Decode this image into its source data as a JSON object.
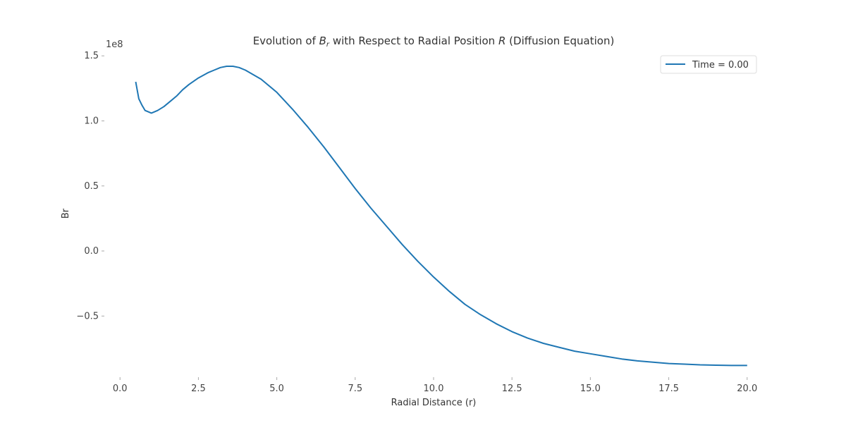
{
  "chart_data": {
    "type": "line",
    "title": "Evolution of B_r with Respect to Radial Position R (Diffusion Equation)",
    "xlabel": "Radial Distance (r)",
    "ylabel": "Br",
    "y_offset_label": "1e8",
    "xlim": [
      -0.5,
      20.5
    ],
    "ylim": [
      -0.97,
      1.55
    ],
    "x_ticks": [
      0.0,
      2.5,
      5.0,
      7.5,
      10.0,
      12.5,
      15.0,
      17.5,
      20.0
    ],
    "x_tick_labels": [
      "0.0",
      "2.5",
      "5.0",
      "7.5",
      "10.0",
      "12.5",
      "15.0",
      "17.5",
      "20.0"
    ],
    "y_ticks": [
      -0.5,
      0.0,
      0.5,
      1.0,
      1.5
    ],
    "y_tick_labels": [
      "−0.5",
      "0.0",
      "0.5",
      "1.0",
      "1.5"
    ],
    "grid": false,
    "legend_position": "top-right",
    "series": [
      {
        "name": "Time = 0.00",
        "color": "#1f77b4",
        "x": [
          0.5,
          0.6,
          0.7,
          0.8,
          0.9,
          1.0,
          1.1,
          1.2,
          1.4,
          1.6,
          1.8,
          2.0,
          2.2,
          2.5,
          2.8,
          3.0,
          3.2,
          3.4,
          3.6,
          3.8,
          4.0,
          4.5,
          5.0,
          5.5,
          6.0,
          6.5,
          7.0,
          7.5,
          8.0,
          8.5,
          9.0,
          9.5,
          10.0,
          10.5,
          11.0,
          11.5,
          12.0,
          12.5,
          13.0,
          13.5,
          14.0,
          14.5,
          15.0,
          15.5,
          16.0,
          16.5,
          17.0,
          17.5,
          18.0,
          18.5,
          19.0,
          19.5,
          20.0
        ],
        "y": [
          1.3,
          1.17,
          1.12,
          1.08,
          1.07,
          1.06,
          1.07,
          1.08,
          1.11,
          1.15,
          1.19,
          1.24,
          1.28,
          1.33,
          1.37,
          1.39,
          1.41,
          1.42,
          1.42,
          1.41,
          1.39,
          1.32,
          1.22,
          1.09,
          0.95,
          0.8,
          0.64,
          0.48,
          0.33,
          0.19,
          0.05,
          -0.08,
          -0.2,
          -0.31,
          -0.41,
          -0.49,
          -0.56,
          -0.62,
          -0.67,
          -0.71,
          -0.74,
          -0.77,
          -0.79,
          -0.81,
          -0.83,
          -0.845,
          -0.855,
          -0.865,
          -0.87,
          -0.875,
          -0.878,
          -0.88,
          -0.88
        ]
      }
    ]
  }
}
